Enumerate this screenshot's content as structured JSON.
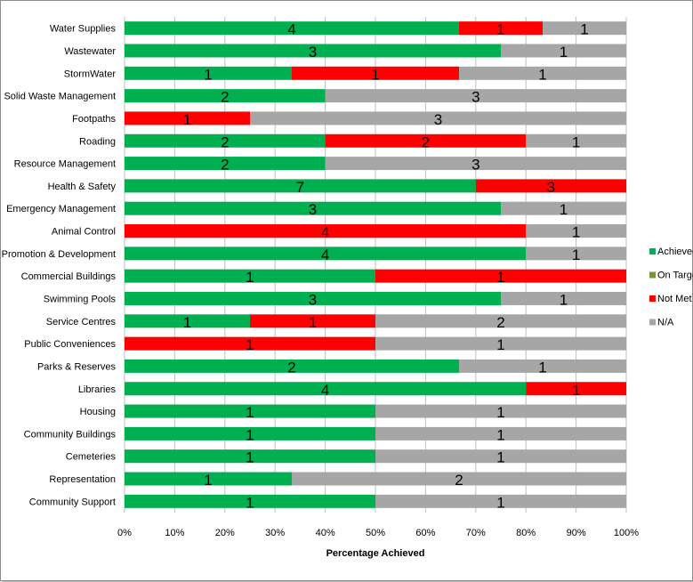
{
  "chart_data": {
    "type": "bar",
    "orientation": "horizontal",
    "stacked": "percent",
    "title": "",
    "xlabel": "Percentage Achieved",
    "ylabel": "",
    "xlim": [
      0,
      100
    ],
    "grid": true,
    "legend_position": "right",
    "x_ticks": [
      "0%",
      "10%",
      "20%",
      "30%",
      "40%",
      "50%",
      "60%",
      "70%",
      "80%",
      "90%",
      "100%"
    ],
    "categories": [
      "Water Supplies",
      "Wastewater",
      "StormWater",
      "Solid Waste Management",
      "Footpaths",
      "Roading",
      "Resource Management",
      "Health & Safety",
      "Emergency Management",
      "Animal Control",
      "District Promotion & Development",
      "Commercial Buildings",
      "Swimming Pools",
      "Service Centres",
      "Public Conveniences",
      "Parks & Reserves",
      "Libraries",
      "Housing",
      "Community Buildings",
      "Cemeteries",
      "Representation",
      "Community Support"
    ],
    "series": [
      {
        "name": "Achieved",
        "color": "#00b050",
        "values": [
          4,
          3,
          1,
          2,
          0,
          2,
          2,
          7,
          3,
          0,
          4,
          1,
          3,
          1,
          0,
          2,
          4,
          1,
          1,
          1,
          1,
          1
        ]
      },
      {
        "name": "On Target",
        "color": "#77933c",
        "values": [
          0,
          0,
          0,
          0,
          0,
          0,
          0,
          0,
          0,
          0,
          0,
          0,
          0,
          0,
          0,
          0,
          0,
          0,
          0,
          0,
          0,
          0
        ]
      },
      {
        "name": "Not Met",
        "color": "#ff0000",
        "values": [
          1,
          0,
          1,
          0,
          1,
          2,
          0,
          3,
          0,
          4,
          0,
          1,
          0,
          1,
          1,
          0,
          1,
          0,
          0,
          0,
          0,
          0
        ]
      },
      {
        "name": "N/A",
        "color": "#a6a6a6",
        "values": [
          1,
          1,
          1,
          3,
          3,
          1,
          3,
          0,
          1,
          1,
          1,
          0,
          1,
          2,
          1,
          1,
          0,
          1,
          1,
          1,
          2,
          1
        ]
      }
    ]
  }
}
